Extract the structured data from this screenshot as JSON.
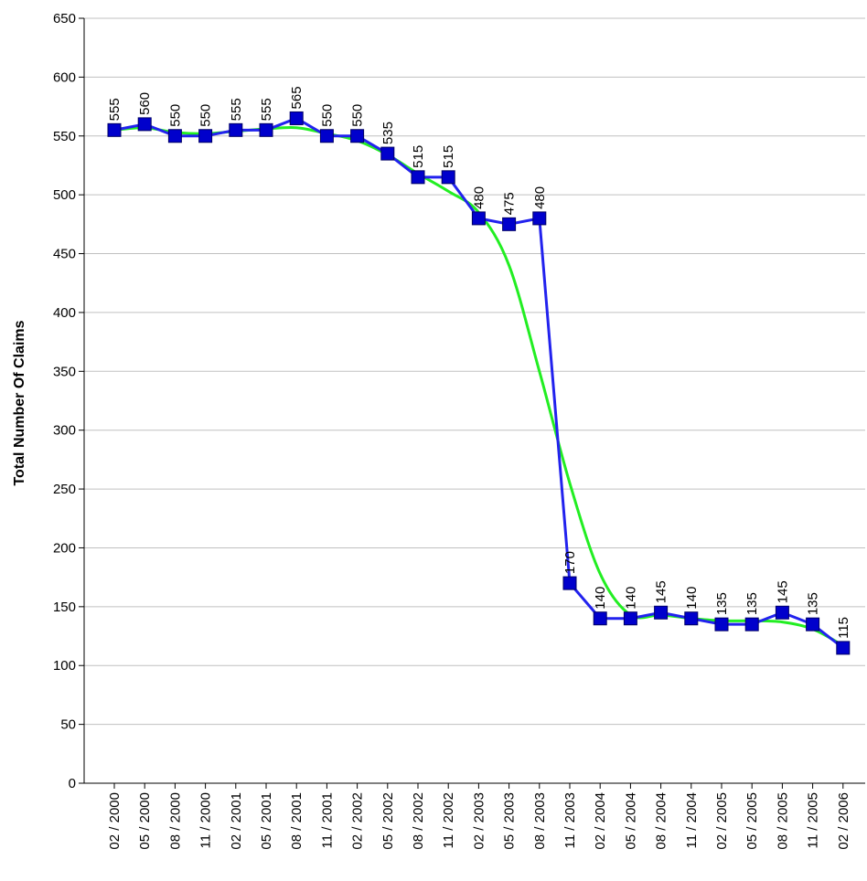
{
  "chart_data": {
    "type": "line",
    "title": "",
    "xlabel": "",
    "ylabel": "Total Number Of Claims",
    "ylim": [
      0,
      650
    ],
    "ytick_step": 50,
    "grid": "horizontal",
    "categories": [
      "02 / 2000",
      "05 / 2000",
      "08 / 2000",
      "11 / 2000",
      "02 / 2001",
      "05 / 2001",
      "08 / 2001",
      "11 / 2001",
      "02 / 2002",
      "05 / 2002",
      "08 / 2002",
      "11 / 2002",
      "02 / 2003",
      "05 / 2003",
      "08 / 2003",
      "11 / 2003",
      "02 / 2004",
      "05 / 2004",
      "08 / 2004",
      "11 / 2004",
      "02 / 2005",
      "05 / 2005",
      "08 / 2005",
      "11 / 2005",
      "02 / 2006"
    ],
    "series": [
      {
        "kind": "data",
        "values": [
          555,
          560,
          550,
          550,
          555,
          555,
          565,
          550,
          550,
          535,
          515,
          515,
          480,
          475,
          480,
          170,
          140,
          140,
          145,
          140,
          135,
          135,
          145,
          135,
          115
        ],
        "line_color": "#2222ee",
        "marker": "square",
        "marker_color": "#0000cc",
        "data_labels": true
      },
      {
        "kind": "trend",
        "values": [
          555,
          557,
          553,
          552,
          554,
          556,
          557,
          552,
          546,
          534,
          518,
          503,
          485,
          440,
          350,
          255,
          178,
          143,
          143,
          140,
          138,
          138,
          137,
          131,
          117
        ],
        "line_color": "#22ee22",
        "marker": "none",
        "data_labels": false
      }
    ]
  }
}
